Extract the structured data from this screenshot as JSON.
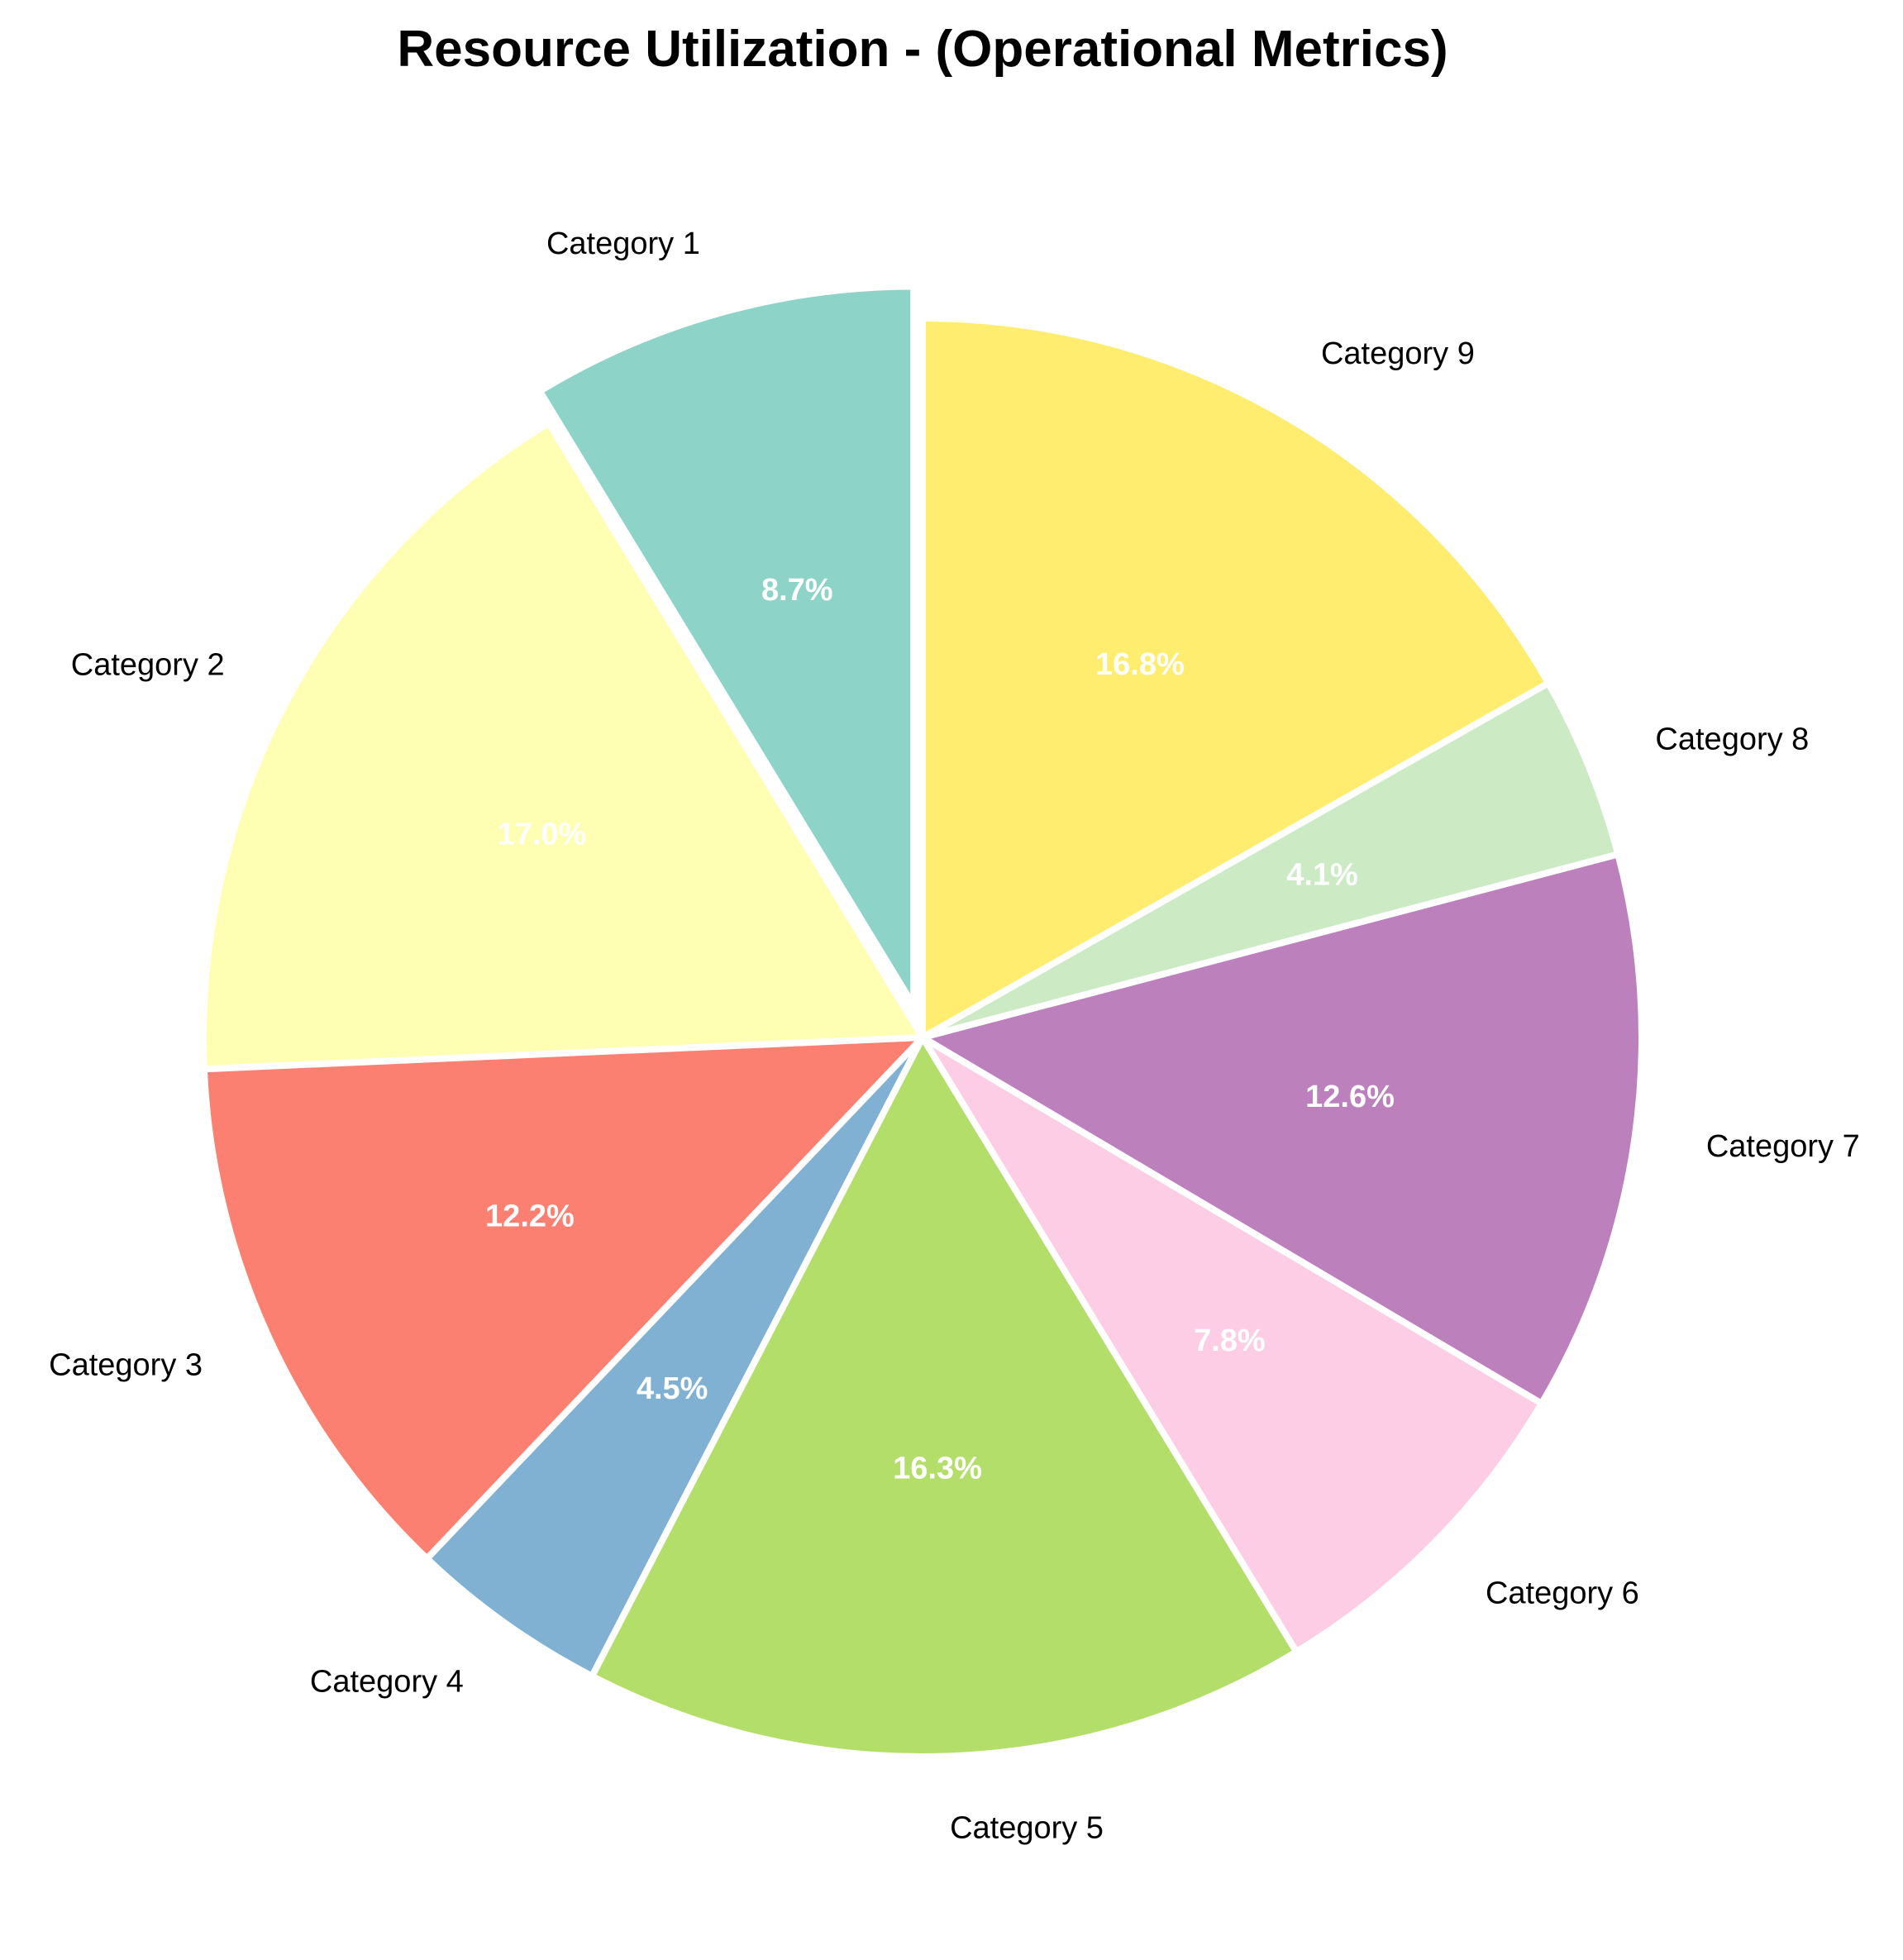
{
  "chart_data": {
    "type": "pie",
    "title": "Resource Utilization - (Operational Metrics)",
    "start_angle": "top",
    "direction": "counter-clockwise",
    "exploded": [
      "Category 1"
    ],
    "slices": [
      {
        "label": "Category 1",
        "value": 8.7,
        "display": "8.7%",
        "color": "#8dd3c7"
      },
      {
        "label": "Category 2",
        "value": 17.0,
        "display": "17.0%",
        "color": "#ffffb3"
      },
      {
        "label": "Category 3",
        "value": 12.2,
        "display": "12.2%",
        "color": "#fb8072"
      },
      {
        "label": "Category 4",
        "value": 4.5,
        "display": "4.5%",
        "color": "#80b1d3"
      },
      {
        "label": "Category 5",
        "value": 16.3,
        "display": "16.3%",
        "color": "#b3de69"
      },
      {
        "label": "Category 6",
        "value": 7.8,
        "display": "7.8%",
        "color": "#fccde5"
      },
      {
        "label": "Category 7",
        "value": 12.6,
        "display": "12.6%",
        "color": "#bc80bd"
      },
      {
        "label": "Category 8",
        "value": 4.1,
        "display": "4.1%",
        "color": "#ccebc5"
      },
      {
        "label": "Category 9",
        "value": 16.8,
        "display": "16.8%",
        "color": "#ffed6f"
      }
    ]
  }
}
